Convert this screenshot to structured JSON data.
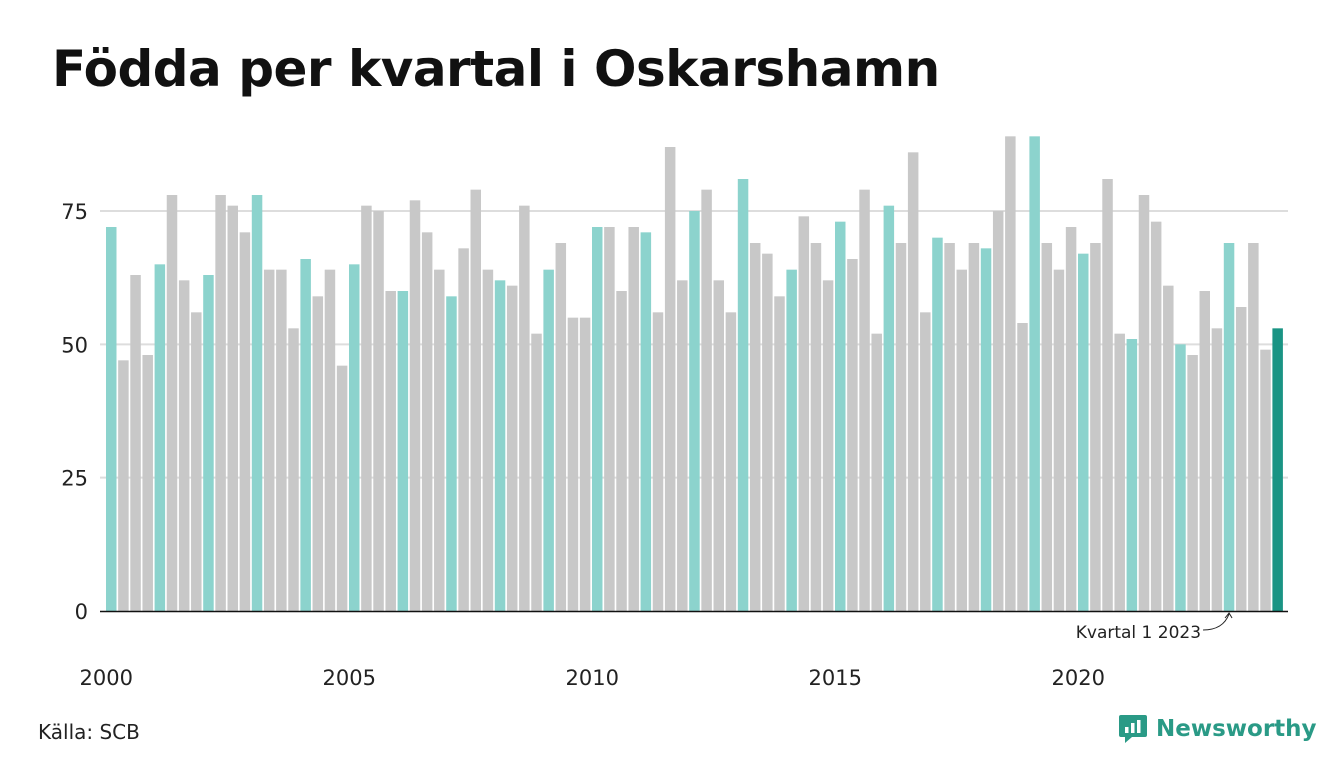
{
  "title": "Födda per kvartal i Oskarshamn",
  "source": "Källa: SCB",
  "brand": "Newsworthy",
  "colors": {
    "q1": "#8cd3cd",
    "other": "#c8c8c8",
    "highlight": "#1a9484",
    "grid": "#dddddd",
    "brand": "#2a9a86"
  },
  "chart_data": {
    "type": "bar",
    "title": "Födda per kvartal i Oskarshamn",
    "xlabel": "",
    "ylabel": "",
    "ylim": [
      0,
      90
    ],
    "yticks": [
      0,
      25,
      50,
      75
    ],
    "xtick_labels": [
      "2000",
      "2005",
      "2010",
      "2015",
      "2020"
    ],
    "grid": true,
    "annotation": {
      "text": "Kvartal 1 2023",
      "target": "2023 Q1"
    },
    "first_year": 2000,
    "values": [
      72,
      47,
      63,
      48,
      65,
      78,
      62,
      56,
      63,
      78,
      76,
      71,
      78,
      64,
      64,
      53,
      66,
      59,
      64,
      46,
      65,
      76,
      75,
      60,
      60,
      77,
      71,
      64,
      59,
      68,
      79,
      64,
      62,
      61,
      76,
      52,
      64,
      69,
      55,
      55,
      72,
      72,
      60,
      72,
      71,
      56,
      87,
      62,
      75,
      79,
      62,
      56,
      81,
      69,
      67,
      59,
      64,
      74,
      69,
      62,
      73,
      66,
      79,
      52,
      76,
      69,
      86,
      56,
      70,
      69,
      64,
      69,
      68,
      75,
      89,
      54,
      89,
      69,
      64,
      72,
      67,
      69,
      81,
      52,
      51,
      78,
      73,
      61,
      50,
      48,
      60,
      53,
      69,
      57,
      69,
      49,
      53
    ]
  }
}
